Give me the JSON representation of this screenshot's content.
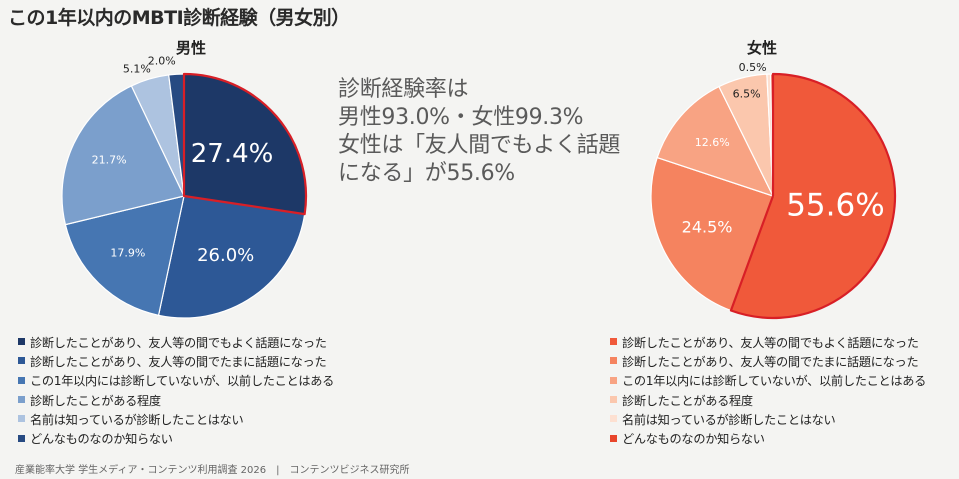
{
  "title": "この1年以内のMBTI診断経験（男女別）",
  "center_text": [
    "診断経験率は",
    "男性93.0%・女性99.3%",
    "女性は「友人間でもよく話題",
    "になる」が55.6%"
  ],
  "footer": "産業能率大学 学生メディア・コンテンツ利用調査 2026　|　コンテンツビジネス研究所",
  "chart_data": [
    {
      "type": "pie",
      "title": "男性",
      "categories": [
        "診断したことがあり、友人等の間でもよく話題になった",
        "診断したことがあり、友人等の間でたまに話題になった",
        "この1年以内には診断していないが、以前したことはある",
        "診断したことがある程度",
        "名前は知っているが診断したことはない",
        "どんなものなのか知らない"
      ],
      "values": [
        27.4,
        26.0,
        17.9,
        21.7,
        5.1,
        2.0
      ],
      "labels": [
        "27.4%",
        "26.0%",
        "17.9%",
        "21.7%",
        "5.1%",
        "2.0%"
      ],
      "colors": [
        "#1d3867",
        "#2d5896",
        "#4676b2",
        "#7b9fcc",
        "#adc3e0",
        "#274a82"
      ],
      "highlight": [
        true,
        false,
        false,
        false,
        false,
        false
      ],
      "legend_position": "bottom"
    },
    {
      "type": "pie",
      "title": "女性",
      "categories": [
        "診断したことがあり、友人等の間でもよく話題になった",
        "診断したことがあり、友人等の間でたまに話題になった",
        "この1年以内には診断していないが、以前したことはある",
        "診断したことがある程度",
        "名前は知っているが診断したことはない",
        "どんなものなのか知らない"
      ],
      "values": [
        55.6,
        24.5,
        12.6,
        6.5,
        0.5,
        0.3
      ],
      "labels": [
        "55.6%",
        "24.5%",
        "12.6%",
        "6.5%",
        "0.5%",
        ""
      ],
      "colors": [
        "#f0593a",
        "#f5835f",
        "#f8a383",
        "#fbc7ad",
        "#fde0d1",
        "#e8452b"
      ],
      "highlight": [
        true,
        false,
        false,
        false,
        false,
        false
      ],
      "legend_position": "bottom"
    }
  ]
}
